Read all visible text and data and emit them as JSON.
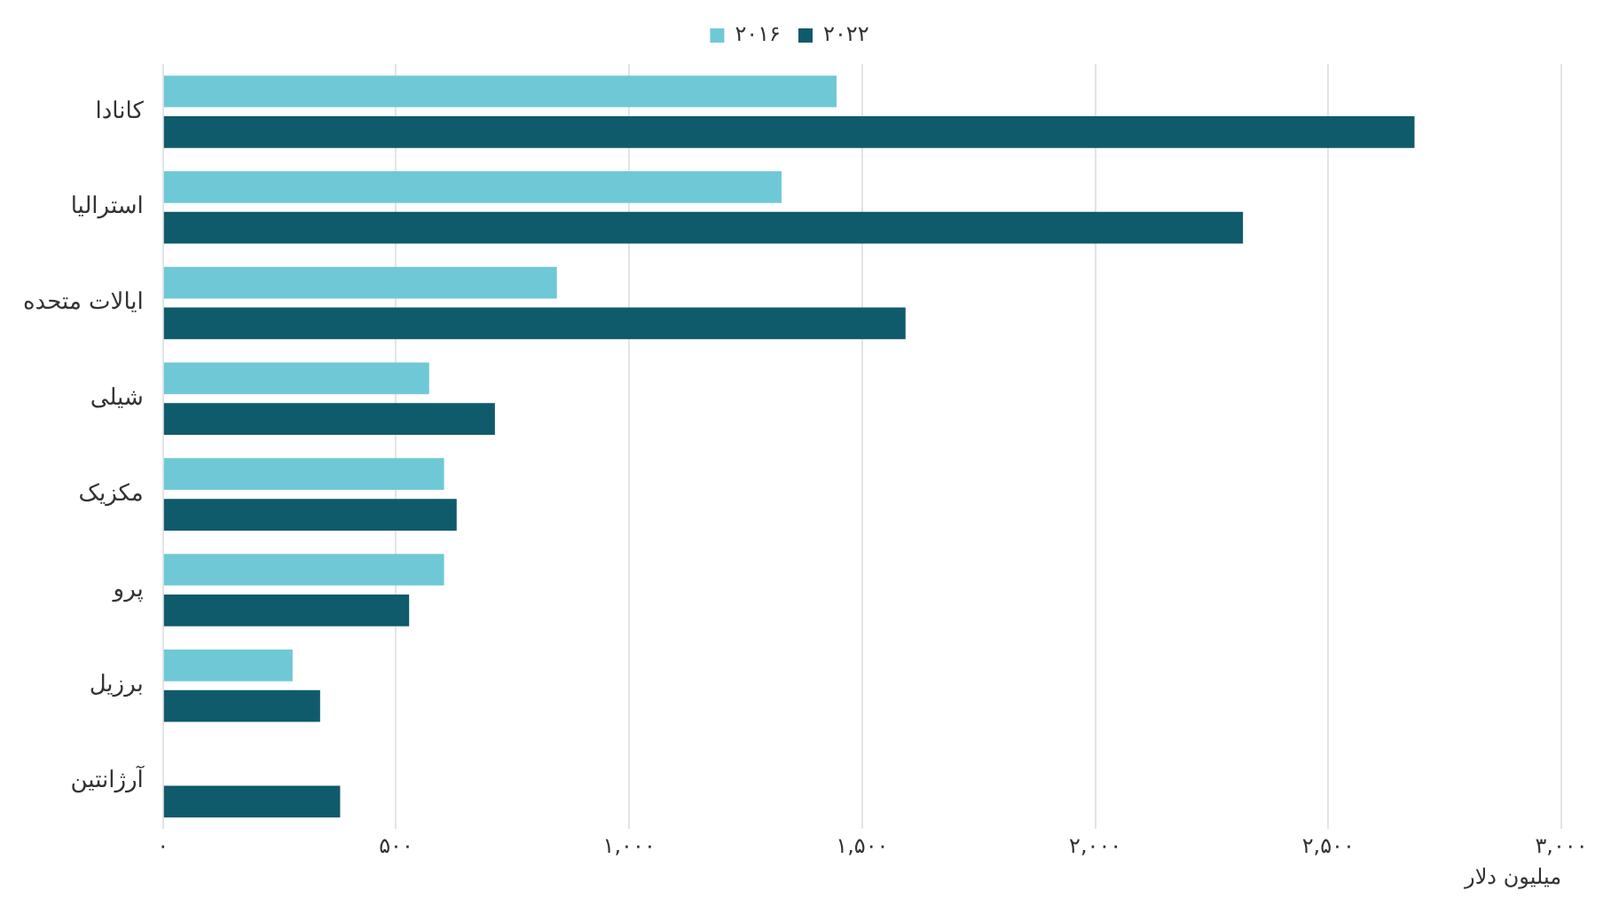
{
  "chart_data": {
    "type": "bar",
    "orientation": "horizontal",
    "xlabel": "میلیون دلار",
    "categories": [
      "کانادا",
      "استرالیا",
      "ایالات متحده",
      "شیلی",
      "مکزیک",
      "پرو",
      "برزیل",
      "آرژانتین"
    ],
    "series": [
      {
        "name": "۲۰۱۶",
        "color": "#6fc8d6",
        "values": [
          1445,
          1327,
          845,
          571,
          603,
          603,
          278,
          null
        ]
      },
      {
        "name": "۲۰۲۲",
        "color": "#0f5a6b",
        "values": [
          2685,
          2317,
          1593,
          712,
          630,
          528,
          337,
          380
        ]
      }
    ],
    "xlim": [
      0,
      3000
    ],
    "xticks": [
      {
        "value": 0,
        "label": "۰"
      },
      {
        "value": 500,
        "label": "۵۰۰"
      },
      {
        "value": 1000,
        "label": "۱,۰۰۰"
      },
      {
        "value": 1500,
        "label": "۱,۵۰۰"
      },
      {
        "value": 2000,
        "label": "۲,۰۰۰"
      },
      {
        "value": 2500,
        "label": "۲,۵۰۰"
      },
      {
        "value": 3000,
        "label": "۳,۰۰۰"
      }
    ],
    "grid": "x",
    "legend": "top"
  }
}
